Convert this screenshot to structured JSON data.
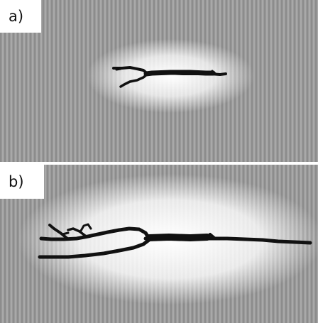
{
  "panels": [
    {
      "id": "a",
      "label": "a)"
    },
    {
      "id": "b",
      "label": "b)"
    }
  ],
  "colors": {
    "field_gray": "#9a9a9a",
    "stripe_dark": "#8c8c8c",
    "stripe_light": "#a9a9a9",
    "glow": "#ffffff",
    "crack": "#111111",
    "label_background": "#ffffff"
  }
}
